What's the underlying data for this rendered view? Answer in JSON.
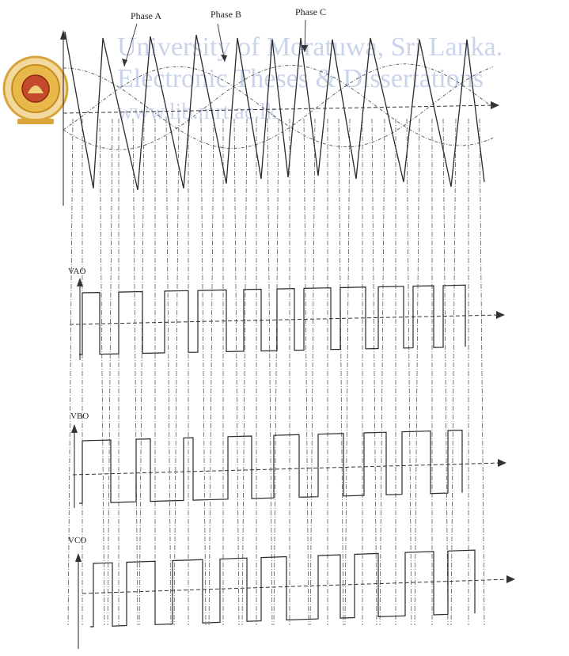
{
  "labels": {
    "phase_a": "Phase A",
    "phase_b": "Phase B",
    "phase_c": "Phase C",
    "vao": "VAO",
    "vbo": "VBO",
    "vco": "VCO"
  },
  "watermark": {
    "line1": "University of Moratuwa, Sri Lanka.",
    "line2": "Electronic Theses & Dissertations",
    "line3": "www.lib.mrt.ac.lk"
  },
  "colors": {
    "ink": "#2a2a2a",
    "watermark": "#c9d3ea",
    "seal": "#d9a43a"
  },
  "icons": {
    "seal": "university-seal-icon"
  }
}
